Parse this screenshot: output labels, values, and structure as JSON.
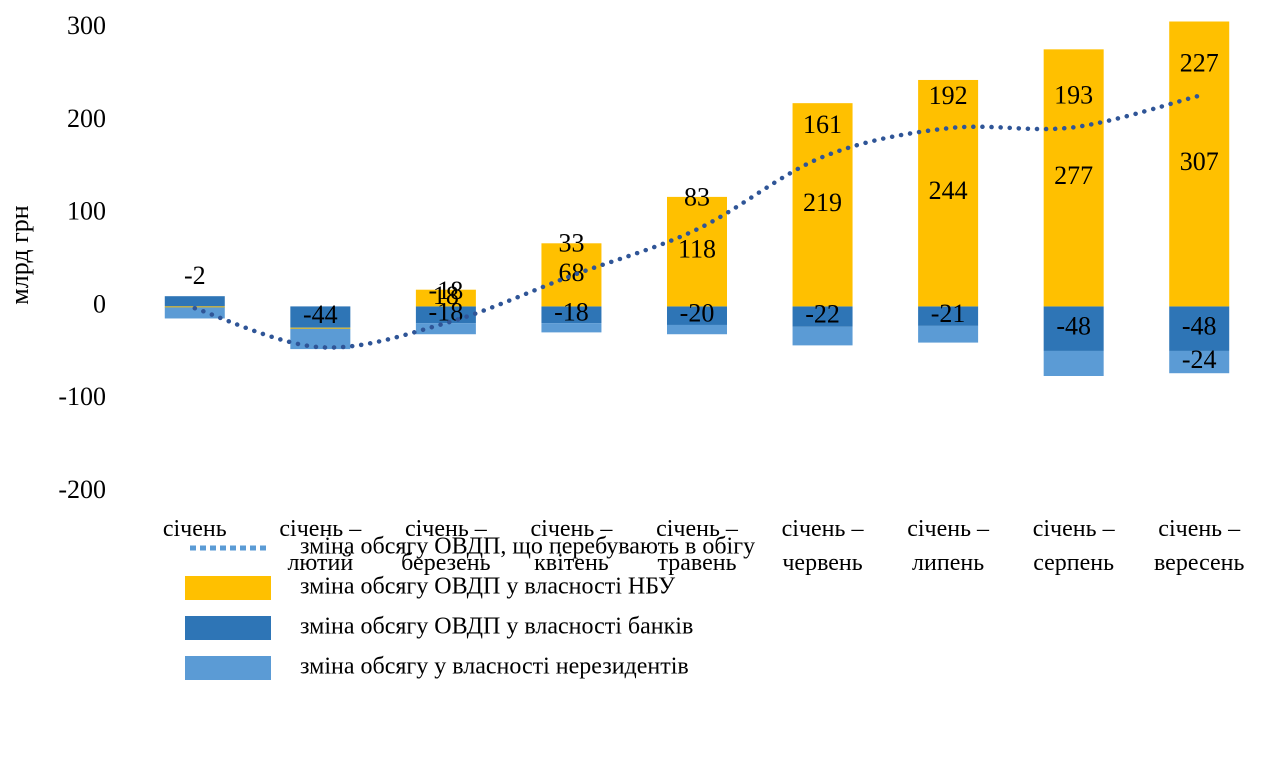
{
  "chart_data": {
    "type": "bar",
    "y_label": "млрд грн",
    "categories": [
      "січень",
      "січень – лютий",
      "січень – березень",
      "січень – квітень",
      "січень – травень",
      "січень – червень",
      "січень – липень",
      "січень – серпень",
      "січень – вересень"
    ],
    "ylim": [
      -200,
      300
    ],
    "yticks": [
      -200,
      -100,
      0,
      100,
      200,
      300
    ],
    "series": [
      {
        "name": "зміна обсягу ОВДП, що перебувають в обігу",
        "type": "line",
        "color": "#2f5597",
        "values": [
          -2,
          -44,
          -18,
          33,
          83,
          161,
          192,
          193,
          227
        ]
      },
      {
        "name": "зміна обсягу ОВДП у власності НБУ",
        "type": "bar",
        "color": "#ffc000",
        "values": [
          -1,
          -1,
          18,
          68,
          118,
          219,
          244,
          277,
          307
        ]
      },
      {
        "name": "зміна обсягу ОВДП у власності банків",
        "type": "bar",
        "color": "#2e75b6",
        "values": [
          11,
          -23,
          -18,
          -18,
          -20,
          -22,
          -21,
          -48,
          -48
        ]
      },
      {
        "name": "зміна обсягу у власності нерезидентів",
        "type": "bar",
        "color": "#5b9bd5",
        "values": [
          -12,
          -22,
          -12,
          -10,
          -10,
          -20,
          -18,
          -27,
          -24
        ]
      }
    ],
    "labelled": {
      "1": [
        2,
        3,
        4,
        5,
        6,
        7,
        8
      ],
      "2": [
        2,
        3,
        4,
        5,
        6,
        7,
        8
      ],
      "3": [
        8
      ]
    }
  }
}
